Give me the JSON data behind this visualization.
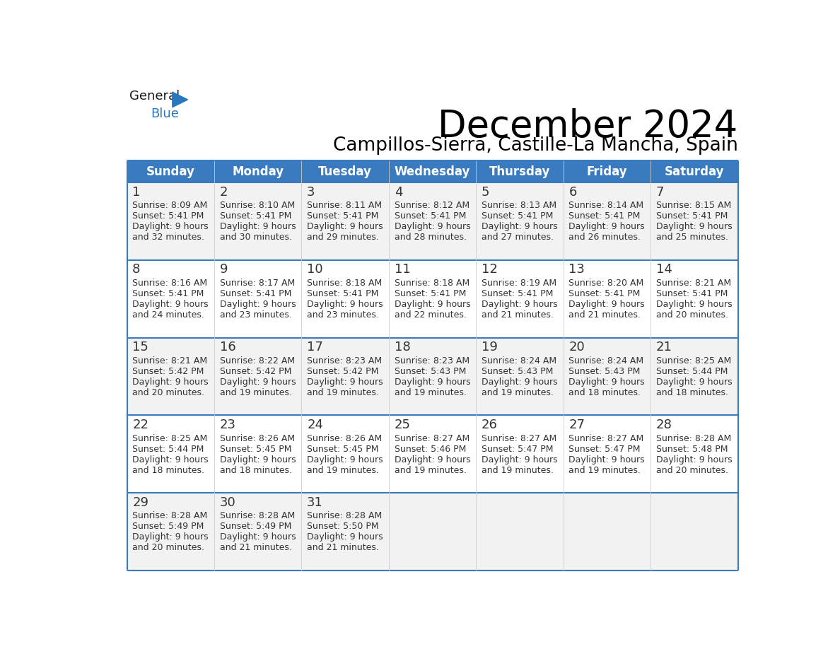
{
  "title": "December 2024",
  "subtitle": "Campillos-Sierra, Castille-La Mancha, Spain",
  "header_bg_color": "#3a7abf",
  "header_text_color": "#FFFFFF",
  "header_font_size": 12,
  "day_num_font_size": 13,
  "cell_text_font_size": 9,
  "title_font_size": 38,
  "subtitle_font_size": 19,
  "days_of_week": [
    "Sunday",
    "Monday",
    "Tuesday",
    "Wednesday",
    "Thursday",
    "Friday",
    "Saturday"
  ],
  "row_bg_colors": [
    "#F2F2F2",
    "#FFFFFF",
    "#F2F2F2",
    "#FFFFFF",
    "#F2F2F2"
  ],
  "grid_color": "#3a7abf",
  "text_color": "#333333",
  "logo_general_color": "#1a1a1a",
  "logo_blue_color": "#2878C0",
  "calendar": [
    [
      {
        "day": 1,
        "sunrise": "8:09 AM",
        "sunset": "5:41 PM",
        "daylight_l1": "Daylight: 9 hours",
        "daylight_l2": "and 32 minutes."
      },
      {
        "day": 2,
        "sunrise": "8:10 AM",
        "sunset": "5:41 PM",
        "daylight_l1": "Daylight: 9 hours",
        "daylight_l2": "and 30 minutes."
      },
      {
        "day": 3,
        "sunrise": "8:11 AM",
        "sunset": "5:41 PM",
        "daylight_l1": "Daylight: 9 hours",
        "daylight_l2": "and 29 minutes."
      },
      {
        "day": 4,
        "sunrise": "8:12 AM",
        "sunset": "5:41 PM",
        "daylight_l1": "Daylight: 9 hours",
        "daylight_l2": "and 28 minutes."
      },
      {
        "day": 5,
        "sunrise": "8:13 AM",
        "sunset": "5:41 PM",
        "daylight_l1": "Daylight: 9 hours",
        "daylight_l2": "and 27 minutes."
      },
      {
        "day": 6,
        "sunrise": "8:14 AM",
        "sunset": "5:41 PM",
        "daylight_l1": "Daylight: 9 hours",
        "daylight_l2": "and 26 minutes."
      },
      {
        "day": 7,
        "sunrise": "8:15 AM",
        "sunset": "5:41 PM",
        "daylight_l1": "Daylight: 9 hours",
        "daylight_l2": "and 25 minutes."
      }
    ],
    [
      {
        "day": 8,
        "sunrise": "8:16 AM",
        "sunset": "5:41 PM",
        "daylight_l1": "Daylight: 9 hours",
        "daylight_l2": "and 24 minutes."
      },
      {
        "day": 9,
        "sunrise": "8:17 AM",
        "sunset": "5:41 PM",
        "daylight_l1": "Daylight: 9 hours",
        "daylight_l2": "and 23 minutes."
      },
      {
        "day": 10,
        "sunrise": "8:18 AM",
        "sunset": "5:41 PM",
        "daylight_l1": "Daylight: 9 hours",
        "daylight_l2": "and 23 minutes."
      },
      {
        "day": 11,
        "sunrise": "8:18 AM",
        "sunset": "5:41 PM",
        "daylight_l1": "Daylight: 9 hours",
        "daylight_l2": "and 22 minutes."
      },
      {
        "day": 12,
        "sunrise": "8:19 AM",
        "sunset": "5:41 PM",
        "daylight_l1": "Daylight: 9 hours",
        "daylight_l2": "and 21 minutes."
      },
      {
        "day": 13,
        "sunrise": "8:20 AM",
        "sunset": "5:41 PM",
        "daylight_l1": "Daylight: 9 hours",
        "daylight_l2": "and 21 minutes."
      },
      {
        "day": 14,
        "sunrise": "8:21 AM",
        "sunset": "5:41 PM",
        "daylight_l1": "Daylight: 9 hours",
        "daylight_l2": "and 20 minutes."
      }
    ],
    [
      {
        "day": 15,
        "sunrise": "8:21 AM",
        "sunset": "5:42 PM",
        "daylight_l1": "Daylight: 9 hours",
        "daylight_l2": "and 20 minutes."
      },
      {
        "day": 16,
        "sunrise": "8:22 AM",
        "sunset": "5:42 PM",
        "daylight_l1": "Daylight: 9 hours",
        "daylight_l2": "and 19 minutes."
      },
      {
        "day": 17,
        "sunrise": "8:23 AM",
        "sunset": "5:42 PM",
        "daylight_l1": "Daylight: 9 hours",
        "daylight_l2": "and 19 minutes."
      },
      {
        "day": 18,
        "sunrise": "8:23 AM",
        "sunset": "5:43 PM",
        "daylight_l1": "Daylight: 9 hours",
        "daylight_l2": "and 19 minutes."
      },
      {
        "day": 19,
        "sunrise": "8:24 AM",
        "sunset": "5:43 PM",
        "daylight_l1": "Daylight: 9 hours",
        "daylight_l2": "and 19 minutes."
      },
      {
        "day": 20,
        "sunrise": "8:24 AM",
        "sunset": "5:43 PM",
        "daylight_l1": "Daylight: 9 hours",
        "daylight_l2": "and 18 minutes."
      },
      {
        "day": 21,
        "sunrise": "8:25 AM",
        "sunset": "5:44 PM",
        "daylight_l1": "Daylight: 9 hours",
        "daylight_l2": "and 18 minutes."
      }
    ],
    [
      {
        "day": 22,
        "sunrise": "8:25 AM",
        "sunset": "5:44 PM",
        "daylight_l1": "Daylight: 9 hours",
        "daylight_l2": "and 18 minutes."
      },
      {
        "day": 23,
        "sunrise": "8:26 AM",
        "sunset": "5:45 PM",
        "daylight_l1": "Daylight: 9 hours",
        "daylight_l2": "and 18 minutes."
      },
      {
        "day": 24,
        "sunrise": "8:26 AM",
        "sunset": "5:45 PM",
        "daylight_l1": "Daylight: 9 hours",
        "daylight_l2": "and 19 minutes."
      },
      {
        "day": 25,
        "sunrise": "8:27 AM",
        "sunset": "5:46 PM",
        "daylight_l1": "Daylight: 9 hours",
        "daylight_l2": "and 19 minutes."
      },
      {
        "day": 26,
        "sunrise": "8:27 AM",
        "sunset": "5:47 PM",
        "daylight_l1": "Daylight: 9 hours",
        "daylight_l2": "and 19 minutes."
      },
      {
        "day": 27,
        "sunrise": "8:27 AM",
        "sunset": "5:47 PM",
        "daylight_l1": "Daylight: 9 hours",
        "daylight_l2": "and 19 minutes."
      },
      {
        "day": 28,
        "sunrise": "8:28 AM",
        "sunset": "5:48 PM",
        "daylight_l1": "Daylight: 9 hours",
        "daylight_l2": "and 20 minutes."
      }
    ],
    [
      {
        "day": 29,
        "sunrise": "8:28 AM",
        "sunset": "5:49 PM",
        "daylight_l1": "Daylight: 9 hours",
        "daylight_l2": "and 20 minutes."
      },
      {
        "day": 30,
        "sunrise": "8:28 AM",
        "sunset": "5:49 PM",
        "daylight_l1": "Daylight: 9 hours",
        "daylight_l2": "and 21 minutes."
      },
      {
        "day": 31,
        "sunrise": "8:28 AM",
        "sunset": "5:50 PM",
        "daylight_l1": "Daylight: 9 hours",
        "daylight_l2": "and 21 minutes."
      },
      null,
      null,
      null,
      null
    ]
  ]
}
